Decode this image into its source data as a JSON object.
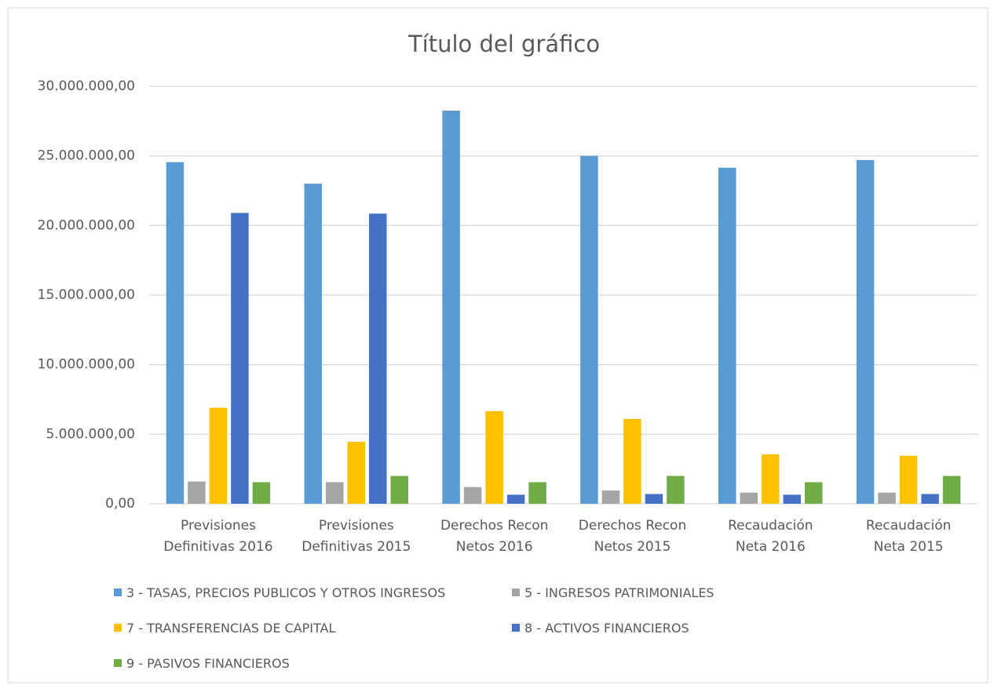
{
  "chart_data": {
    "type": "bar",
    "title": "Título del gráfico",
    "categories": [
      "Previsiones\nDefinitivas 2016",
      "Previsiones\nDefinitivas 2015",
      "Derechos Recon\nNetos 2016",
      "Derechos Recon\nNetos 2015",
      "Recaudación\nNeta 2016",
      "Recaudación\nNeta 2015"
    ],
    "series": [
      {
        "name": "3 - TASAS, PRECIOS PUBLICOS Y OTROS INGRESOS",
        "color": "#5b9bd5",
        "values": [
          24550000,
          23000000,
          28250000,
          25000000,
          24150000,
          24700000
        ]
      },
      {
        "name": "5 - INGRESOS PATRIMONIALES",
        "color": "#a5a5a5",
        "values": [
          1600000,
          1550000,
          1200000,
          950000,
          800000,
          800000
        ]
      },
      {
        "name": "7 - TRANSFERENCIAS DE CAPITAL",
        "color": "#ffc000",
        "values": [
          6900000,
          4450000,
          6650000,
          6100000,
          3550000,
          3450000
        ]
      },
      {
        "name": "8 - ACTIVOS FINANCIEROS",
        "color": "#4472c4",
        "values": [
          20900000,
          20850000,
          650000,
          700000,
          650000,
          700000
        ]
      },
      {
        "name": "9 - PASIVOS FINANCIEROS",
        "color": "#70ad47",
        "values": [
          1550000,
          2000000,
          1550000,
          2000000,
          1550000,
          2000000
        ]
      }
    ],
    "ylim": [
      0,
      30000000
    ],
    "yticks": [
      {
        "value": 0,
        "label": "0,00"
      },
      {
        "value": 5000000,
        "label": "5.000.000,00"
      },
      {
        "value": 10000000,
        "label": "10.000.000,00"
      },
      {
        "value": 15000000,
        "label": "15.000.000,00"
      },
      {
        "value": 20000000,
        "label": "20.000.000,00"
      },
      {
        "value": 25000000,
        "label": "25.000.000,00"
      },
      {
        "value": 30000000,
        "label": "30.000.000,00"
      }
    ],
    "grid": true,
    "legend": "bottom"
  }
}
